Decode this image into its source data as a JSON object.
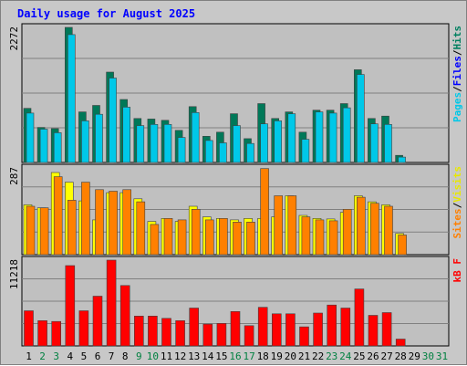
{
  "title": "Daily usage for August 2025",
  "chart_data": [
    {
      "type": "bar",
      "name": "pages-files-hits",
      "scale_label": "2272",
      "ylim": [
        0,
        2272
      ],
      "grid": true,
      "legend": [
        {
          "label": "Pages",
          "color": "#00c8e8"
        },
        {
          "label": "/",
          "color": "#000000"
        },
        {
          "label": "Files",
          "color": "#0000ff"
        },
        {
          "label": "/",
          "color": "#000000"
        },
        {
          "label": "Hits",
          "color": "#008060"
        }
      ],
      "categories": [
        "1",
        "2",
        "3",
        "4",
        "5",
        "6",
        "7",
        "8",
        "9",
        "10",
        "11",
        "12",
        "13",
        "14",
        "15",
        "16",
        "17",
        "18",
        "19",
        "20",
        "21",
        "22",
        "23",
        "24",
        "25",
        "26",
        "27",
        "28",
        "29",
        "30",
        "31"
      ],
      "series": [
        {
          "name": "Hits",
          "color": "#007858",
          "values": [
            910,
            590,
            570,
            2272,
            850,
            960,
            1520,
            1060,
            740,
            730,
            710,
            540,
            940,
            440,
            510,
            820,
            400,
            990,
            740,
            850,
            510,
            880,
            880,
            990,
            1560,
            740,
            780,
            120,
            0,
            0,
            0
          ]
        },
        {
          "name": "Files",
          "color": "#0000ff",
          "values": [
            600,
            420,
            420,
            1150,
            520,
            520,
            560,
            560,
            420,
            420,
            420,
            300,
            420,
            300,
            300,
            300,
            300,
            560,
            420,
            420,
            300,
            420,
            420,
            420,
            560,
            420,
            420,
            60,
            0,
            0,
            0
          ]
        },
        {
          "name": "Pages",
          "color": "#00c8e8",
          "values": [
            830,
            560,
            500,
            2150,
            700,
            810,
            1420,
            930,
            620,
            640,
            640,
            420,
            840,
            370,
            330,
            620,
            320,
            650,
            700,
            820,
            390,
            850,
            830,
            920,
            1480,
            650,
            640,
            90,
            0,
            0,
            0
          ]
        }
      ]
    },
    {
      "type": "bar",
      "name": "sites-visits",
      "scale_label": "287",
      "ylim": [
        0,
        287
      ],
      "grid": true,
      "legend": [
        {
          "label": "Sites",
          "color": "#ff8000"
        },
        {
          "label": "/",
          "color": "#000000"
        },
        {
          "label": "Visits",
          "color": "#e8e800"
        }
      ],
      "categories": [
        "1",
        "2",
        "3",
        "4",
        "5",
        "6",
        "7",
        "8",
        "9",
        "10",
        "11",
        "12",
        "13",
        "14",
        "15",
        "16",
        "17",
        "18",
        "19",
        "20",
        "21",
        "22",
        "23",
        "24",
        "25",
        "26",
        "27",
        "28",
        "29",
        "30",
        "31"
      ],
      "series": [
        {
          "name": "Visits",
          "color": "#ffff00",
          "values": [
            165,
            155,
            272,
            240,
            178,
            115,
            205,
            205,
            185,
            110,
            120,
            110,
            160,
            125,
            120,
            115,
            120,
            120,
            125,
            195,
            130,
            120,
            118,
            140,
            195,
            175,
            165,
            70,
            0,
            0,
            0
          ]
        },
        {
          "name": "Sites",
          "color": "#ff8000",
          "values": [
            160,
            155,
            258,
            180,
            240,
            215,
            210,
            215,
            175,
            100,
            120,
            115,
            150,
            115,
            120,
            108,
            108,
            285,
            195,
            195,
            125,
            115,
            112,
            150,
            190,
            170,
            160,
            65,
            0,
            0,
            0
          ]
        }
      ]
    },
    {
      "type": "bar",
      "name": "kbytes",
      "scale_label": "11218",
      "ylim": [
        0,
        11218
      ],
      "grid": true,
      "legend": [
        {
          "label": "kB F",
          "color": "#ff0000"
        }
      ],
      "categories": [
        "1",
        "2",
        "3",
        "4",
        "5",
        "6",
        "7",
        "8",
        "9",
        "10",
        "11",
        "12",
        "13",
        "14",
        "15",
        "16",
        "17",
        "18",
        "19",
        "20",
        "21",
        "22",
        "23",
        "24",
        "25",
        "26",
        "27",
        "28",
        "29",
        "30",
        "31"
      ],
      "series": [
        {
          "name": "kB F",
          "color": "#ff0000",
          "values": [
            4600,
            3300,
            3200,
            10500,
            4600,
            6500,
            11218,
            7900,
            3900,
            3900,
            3600,
            3300,
            4950,
            2850,
            2950,
            4500,
            2650,
            5050,
            4200,
            4200,
            2500,
            4300,
            5350,
            4950,
            7450,
            4000,
            4350,
            900,
            0,
            0,
            0
          ]
        }
      ]
    }
  ],
  "day_labels": {
    "weekend_color": "#008040",
    "weekday_color": "#000000",
    "weekend_days": [
      "2",
      "3",
      "9",
      "10",
      "16",
      "17",
      "23",
      "24",
      "30",
      "31"
    ]
  }
}
